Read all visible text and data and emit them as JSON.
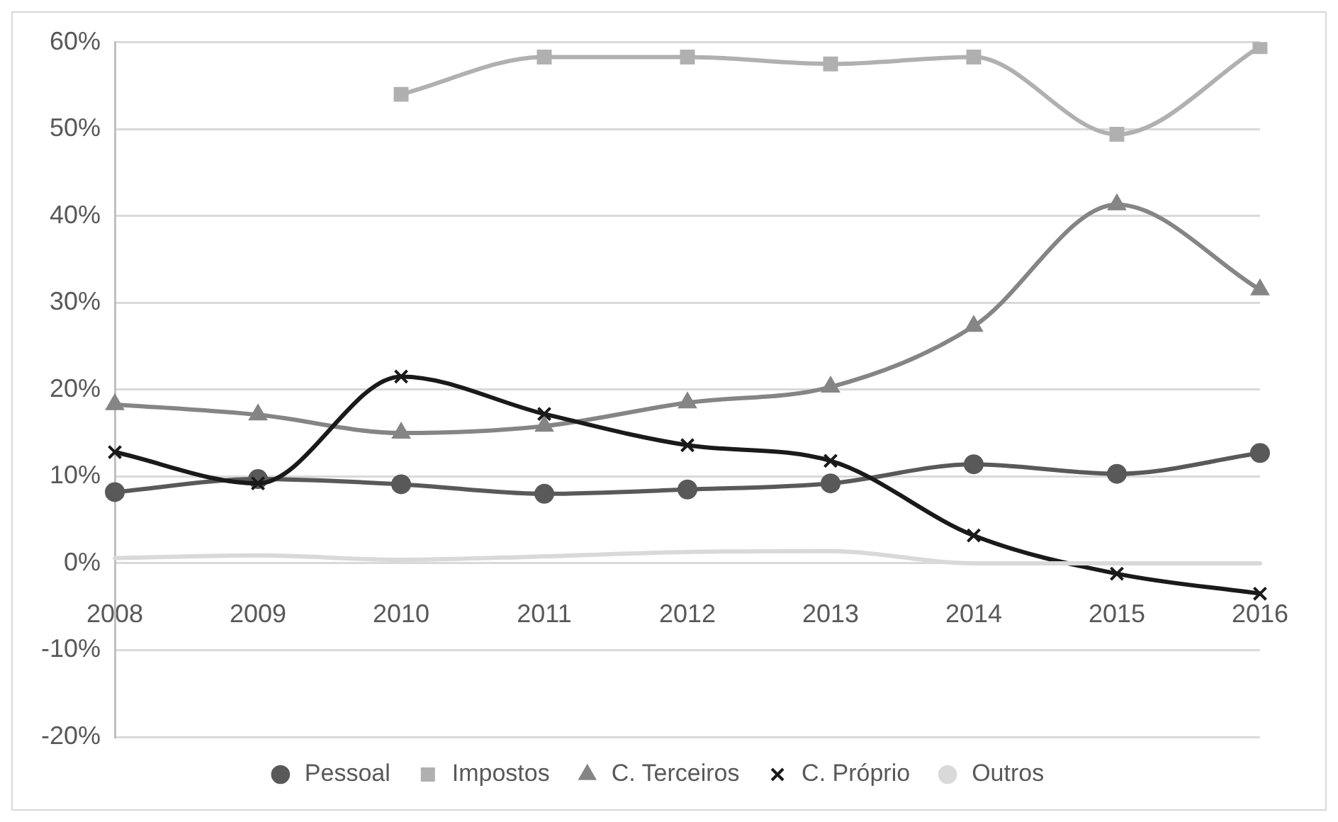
{
  "chart_data": {
    "type": "line",
    "categories": [
      "2008",
      "2009",
      "2010",
      "2011",
      "2012",
      "2013",
      "2014",
      "2015",
      "2016"
    ],
    "ylim": [
      -20,
      60
    ],
    "yticks": [
      {
        "value": -20,
        "label": "-20%"
      },
      {
        "value": -10,
        "label": "-10%"
      },
      {
        "value": 0,
        "label": "0%"
      },
      {
        "value": 10,
        "label": "10%"
      },
      {
        "value": 20,
        "label": "20%"
      },
      {
        "value": 30,
        "label": "30%"
      },
      {
        "value": 40,
        "label": "40%"
      },
      {
        "value": 50,
        "label": "50%"
      },
      {
        "value": 60,
        "label": "60%"
      }
    ],
    "grid": "y",
    "legend": "bottom",
    "series": [
      {
        "name": "Pessoal",
        "color": "#595959",
        "marker": "circle",
        "values": [
          8.2,
          9.7,
          9.1,
          8,
          8.5,
          9.2,
          11.4,
          10.3,
          12.7
        ]
      },
      {
        "name": "Impostos",
        "color": "#b0b0b0",
        "marker": "square",
        "values": [
          null,
          null,
          54,
          58.3,
          58.3,
          57.5,
          58.3,
          49.4,
          59.5
        ]
      },
      {
        "name": "C. Terceiros",
        "color": "#858585",
        "marker": "triangle",
        "values": [
          18.3,
          17.1,
          15,
          15.8,
          18.5,
          20.3,
          27.3,
          41.3,
          31.5
        ]
      },
      {
        "name": "C. Próprio",
        "color": "#1a1a1a",
        "marker": "cross",
        "values": [
          12.8,
          9.2,
          21.5,
          17.2,
          13.6,
          11.8,
          3.2,
          -1.2,
          -3.5
        ]
      },
      {
        "name": "Outros",
        "color": "#d9d9d9",
        "marker": "none",
        "values": [
          0.6,
          0.9,
          0.4,
          0.8,
          1.3,
          1.4,
          0,
          0,
          0
        ]
      }
    ]
  }
}
